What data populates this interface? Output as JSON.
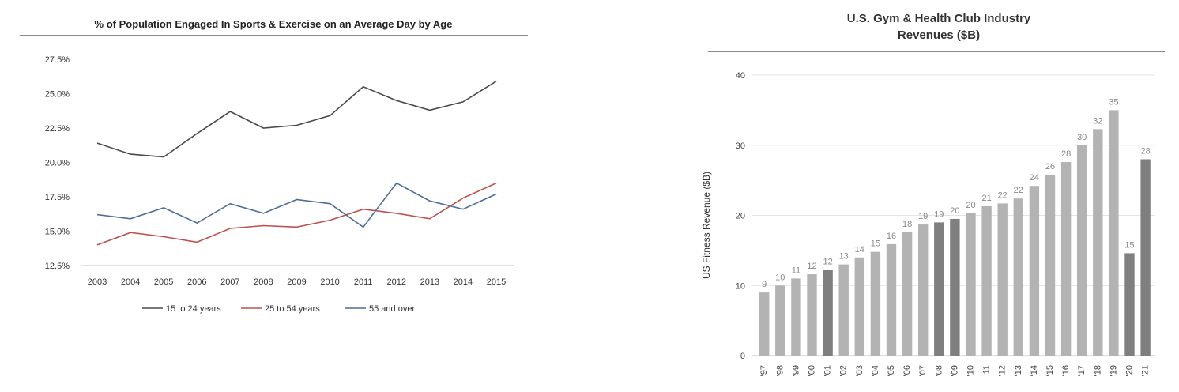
{
  "chart_data": [
    {
      "type": "line",
      "title": "% of Population Engaged In Sports & Exercise on an Average Day by Age",
      "xlabel": "",
      "ylabel": "",
      "categories": [
        "2003",
        "2004",
        "2005",
        "2006",
        "2007",
        "2008",
        "2009",
        "2010",
        "2011",
        "2012",
        "2013",
        "2014",
        "2015"
      ],
      "y_ticks": [
        "12.5%",
        "15.0%",
        "17.5%",
        "20.0%",
        "22.5%",
        "25.0%",
        "27.5%"
      ],
      "ylim": [
        12.5,
        27.5
      ],
      "grid": false,
      "legend_position": "bottom",
      "series": [
        {
          "name": "15 to 24 years",
          "color": "#4a4a4a",
          "values": [
            21.4,
            20.6,
            20.4,
            22.1,
            23.7,
            22.5,
            22.7,
            23.4,
            25.5,
            24.5,
            23.8,
            24.4,
            25.9
          ]
        },
        {
          "name": "25 to 54 years",
          "color": "#c0504d",
          "values": [
            14.0,
            14.9,
            14.6,
            14.2,
            15.2,
            15.4,
            15.3,
            15.8,
            16.6,
            16.3,
            15.9,
            17.4,
            18.5
          ]
        },
        {
          "name": "55 and over",
          "color": "#4f6d9a",
          "values": [
            16.2,
            15.9,
            16.7,
            15.6,
            17.0,
            16.3,
            17.3,
            17.0,
            15.3,
            18.5,
            17.2,
            16.6,
            17.7
          ]
        }
      ]
    },
    {
      "type": "bar",
      "title_lines": [
        "U.S. Gym & Health Club Industry",
        "Revenues ($B)"
      ],
      "xlabel": "",
      "ylabel": "US Fitness Revenue ($B)",
      "ylim": [
        0,
        40
      ],
      "y_ticks": [
        "0",
        "10",
        "20",
        "30",
        "40"
      ],
      "grid": true,
      "categories": [
        "'97",
        "'98",
        "'99",
        "'00",
        "'01",
        "'02",
        "'03",
        "'04",
        "'05",
        "'06",
        "'07",
        "'08",
        "'09",
        "'10",
        "'11",
        "'12",
        "'13",
        "'14",
        "'15",
        "'16",
        "'17",
        "'18",
        "'19",
        "'20",
        "'21"
      ],
      "values": [
        9,
        10,
        11,
        11.6,
        12.2,
        13,
        14,
        14.8,
        15.9,
        17.6,
        18.7,
        19,
        19.5,
        20.3,
        21.3,
        21.7,
        22.4,
        24.2,
        25.8,
        27.6,
        30,
        32.3,
        35,
        14.6,
        28
      ],
      "labels": [
        "9",
        "10",
        "11",
        "12",
        "12",
        "13",
        "14",
        "15",
        "16",
        "18",
        "19",
        "19",
        "20",
        "20",
        "21",
        "22",
        "22",
        "24",
        "26",
        "28",
        "30",
        "32",
        "35",
        "15",
        "28"
      ],
      "highlighted": [
        "'01",
        "'08",
        "'09",
        "'20",
        "'21"
      ],
      "colors": {
        "normal": "#b3b3b3",
        "highlight": "#7f7f7f"
      }
    }
  ]
}
